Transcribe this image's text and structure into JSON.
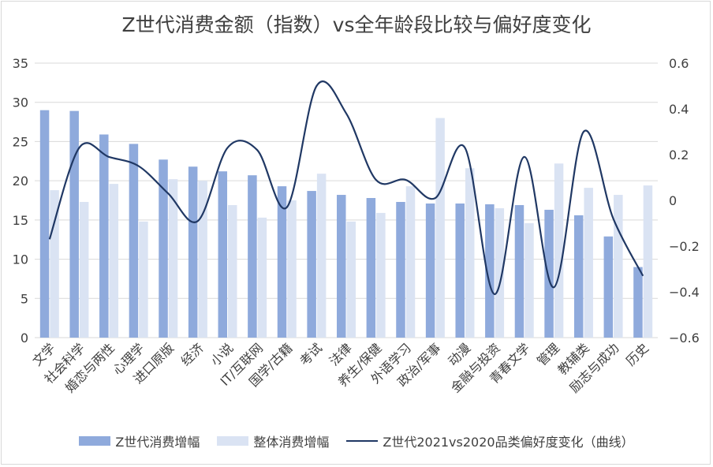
{
  "title": "Z世代消费金额（指数）vs全年龄段比较与偏好度变化",
  "colors": {
    "genz": "#8faadc",
    "overall": "#dae3f3",
    "line": "#203864",
    "grid": "#d9d9d9"
  },
  "legend": {
    "genz": "Z世代消费增幅",
    "overall": "整体消费增幅",
    "line": "Z世代2021vs2020品类偏好度变化（曲线）"
  },
  "chart_data": {
    "type": "bar",
    "categories": [
      "文学",
      "社会科学",
      "婚恋与两性",
      "心理学",
      "进口原版",
      "经济",
      "小说",
      "IT/互联网",
      "国学/古籍",
      "考试",
      "法律",
      "养生/保健",
      "外语学习",
      "政治/军事",
      "动漫",
      "金融与投资",
      "青春文学",
      "管理",
      "教辅类",
      "励志与成功",
      "历史"
    ],
    "series": [
      {
        "name": "Z世代消费增幅",
        "axis": "left",
        "values": [
          29.0,
          28.9,
          25.9,
          24.7,
          22.7,
          21.8,
          21.2,
          20.7,
          19.3,
          18.7,
          18.2,
          17.8,
          17.3,
          17.1,
          17.1,
          17.0,
          16.9,
          16.3,
          15.6,
          12.9,
          9.0
        ]
      },
      {
        "name": "整体消费增幅",
        "axis": "left",
        "values": [
          18.8,
          17.3,
          19.6,
          14.8,
          20.2,
          20.0,
          16.9,
          15.3,
          17.5,
          20.9,
          14.8,
          15.9,
          19.3,
          28.0,
          21.6,
          16.5,
          14.6,
          22.2,
          19.1,
          18.2,
          19.4
        ]
      },
      {
        "name": "Z世代2021vs2020品类偏好度变化（曲线）",
        "axis": "right",
        "type": "line",
        "values": [
          -0.17,
          0.23,
          0.19,
          0.15,
          0.03,
          -0.09,
          0.23,
          0.22,
          -0.03,
          0.5,
          0.38,
          0.09,
          0.09,
          0.01,
          0.23,
          -0.41,
          0.19,
          -0.38,
          0.3,
          -0.08,
          -0.33
        ]
      }
    ],
    "ylim_left": [
      0,
      35
    ],
    "yticks_left": [
      "0",
      "5",
      "10",
      "15",
      "20",
      "25",
      "30",
      "35"
    ],
    "ylim_right": [
      -0.6,
      0.6
    ],
    "yticks_right": [
      "−0.6",
      "−0.4",
      "−0.2",
      "0",
      "0.2",
      "0.4",
      "0.6"
    ],
    "grid": true,
    "legend_position": "bottom"
  }
}
